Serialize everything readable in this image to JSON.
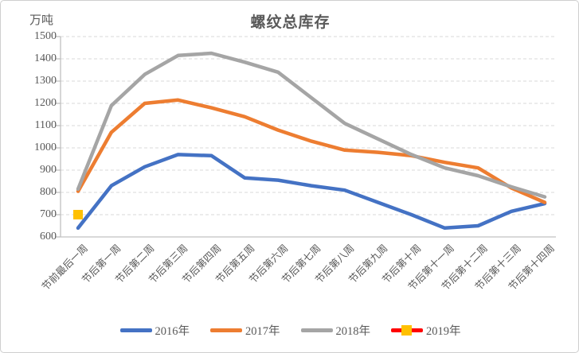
{
  "chart_data": {
    "type": "line",
    "title": "螺纹总库存",
    "unit_label": "万吨",
    "categories": [
      "节前最后一周",
      "节后第一周",
      "节后第二周",
      "节后第三周",
      "节后第四周",
      "节后第五周",
      "节后第六周",
      "节后第七周",
      "节后第八周",
      "节后第九周",
      "节后第十周",
      "节后第十一周",
      "节后第十二周",
      "节后第十三周",
      "节后第十四周"
    ],
    "series": [
      {
        "name": "2016年",
        "color": "#4472C4",
        "values": [
          640,
          830,
          915,
          970,
          965,
          865,
          855,
          830,
          810,
          755,
          700,
          640,
          650,
          715,
          750
        ]
      },
      {
        "name": "2017年",
        "color": "#ED7D31",
        "values": [
          805,
          1070,
          1200,
          1215,
          1180,
          1140,
          1080,
          1030,
          990,
          980,
          965,
          935,
          910,
          820,
          755
        ]
      },
      {
        "name": "2018年",
        "color": "#A5A5A5",
        "values": [
          815,
          1190,
          1330,
          1415,
          1425,
          1385,
          1340,
          1225,
          1110,
          1040,
          970,
          910,
          875,
          825,
          780
        ]
      },
      {
        "name": "2019年",
        "color": "#FF0000",
        "marker": "square",
        "marker_color": "#FFC000",
        "values": [
          700,
          null,
          null,
          null,
          null,
          null,
          null,
          null,
          null,
          null,
          null,
          null,
          null,
          null,
          null
        ]
      }
    ],
    "ylim": [
      600,
      1500
    ],
    "y_ticks": [
      600,
      700,
      800,
      900,
      1000,
      1100,
      1200,
      1300,
      1400,
      1500
    ],
    "grid": "horizontal-dashed",
    "legend_position": "bottom",
    "axis_color": "#BFBFBF",
    "gridline_color": "#D9D9D9",
    "text_color": "#595959"
  }
}
